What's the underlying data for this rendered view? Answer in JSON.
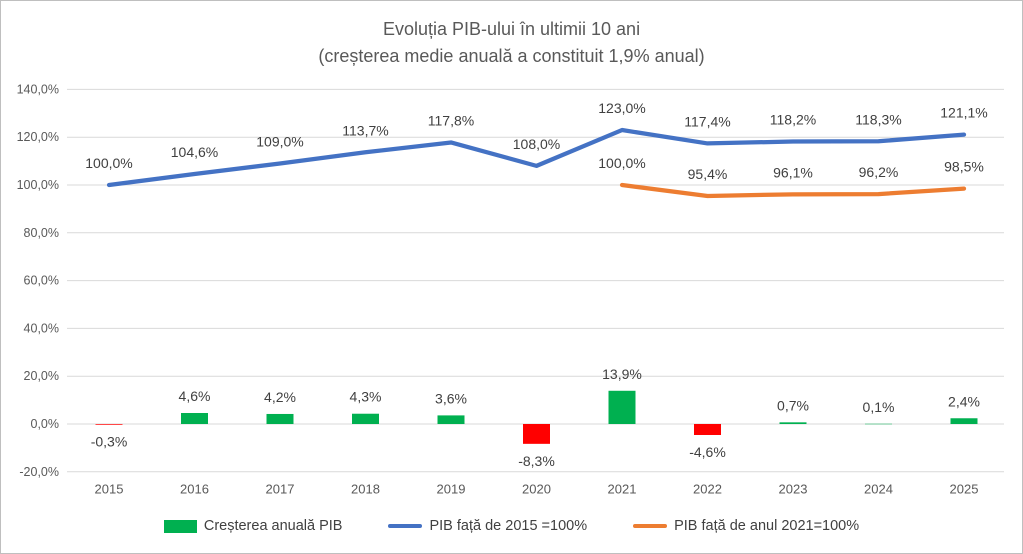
{
  "chart_data": {
    "type": "combo",
    "title": "Evoluția PIB-ului în ultimii 10 ani",
    "subtitle": "(creșterea medie anuală a constituit 1,9% anual)",
    "categories": [
      "2015",
      "2016",
      "2017",
      "2018",
      "2019",
      "2020",
      "2021",
      "2022",
      "2023",
      "2024",
      "2025"
    ],
    "y_axis": {
      "tick_labels": [
        "140,0%",
        "120,0%",
        "100,0%",
        "80,0%",
        "60,0%",
        "40,0%",
        "20,0%",
        "0,0%",
        "-20,0%"
      ],
      "tick_values": [
        140,
        120,
        100,
        80,
        60,
        40,
        20,
        0,
        -20
      ],
      "min": -20,
      "max": 140,
      "grid": true
    },
    "series": [
      {
        "name": "Creșterea anuală PIB",
        "type": "bar",
        "values": [
          -0.3,
          4.6,
          4.2,
          4.3,
          3.6,
          -8.3,
          13.9,
          -4.6,
          0.7,
          0.1,
          2.4
        ],
        "labels": [
          "-0,3%",
          "4,6%",
          "4,2%",
          "4,3%",
          "3,6%",
          "-8,3%",
          "13,9%",
          "-4,6%",
          "0,7%",
          "0,1%",
          "2,4%"
        ],
        "color_positive": "#00B050",
        "color_negative": "#FF0000"
      },
      {
        "name": "PIB față de 2015 =100%",
        "type": "line",
        "color": "#4472C4",
        "values": [
          100.0,
          104.6,
          109.0,
          113.7,
          117.8,
          108.0,
          123.0,
          117.4,
          118.2,
          118.3,
          121.1
        ],
        "labels": [
          "100,0%",
          "104,6%",
          "109,0%",
          "113,7%",
          "117,8%",
          "108,0%",
          "123,0%",
          "117,4%",
          "118,2%",
          "118,3%",
          "121,1%"
        ]
      },
      {
        "name": "PIB față de anul 2021=100%",
        "type": "line",
        "color": "#ED7D31",
        "values": [
          null,
          null,
          null,
          null,
          null,
          null,
          100.0,
          95.4,
          96.1,
          96.2,
          98.5
        ],
        "labels": [
          null,
          null,
          null,
          null,
          null,
          null,
          "100,0%",
          "95,4%",
          "96,1%",
          "96,2%",
          "98,5%"
        ]
      }
    ],
    "legend": {
      "position": "bottom",
      "entries": [
        {
          "label": "Creșterea anuală PIB",
          "marker": "rect",
          "color": "#00B050"
        },
        {
          "label": "PIB față de 2015 =100%",
          "marker": "line",
          "color": "#4472C4"
        },
        {
          "label": "PIB față de anul 2021=100%",
          "marker": "line",
          "color": "#ED7D31"
        }
      ]
    },
    "grid_color": "#D9D9D9",
    "text_colors": {
      "title": "#595959",
      "axis": "#595959",
      "data_labels": "#404040"
    }
  }
}
